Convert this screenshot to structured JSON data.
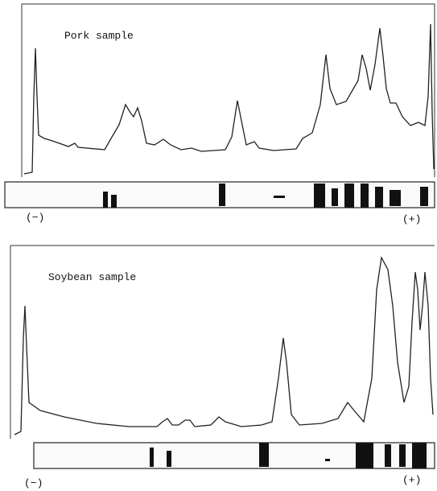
{
  "panels": [
    {
      "title": "Pork sample",
      "minus": "(−)",
      "plus": "(+)"
    },
    {
      "title": "Soybean sample",
      "minus": "(−)",
      "plus": "(+)"
    }
  ]
}
